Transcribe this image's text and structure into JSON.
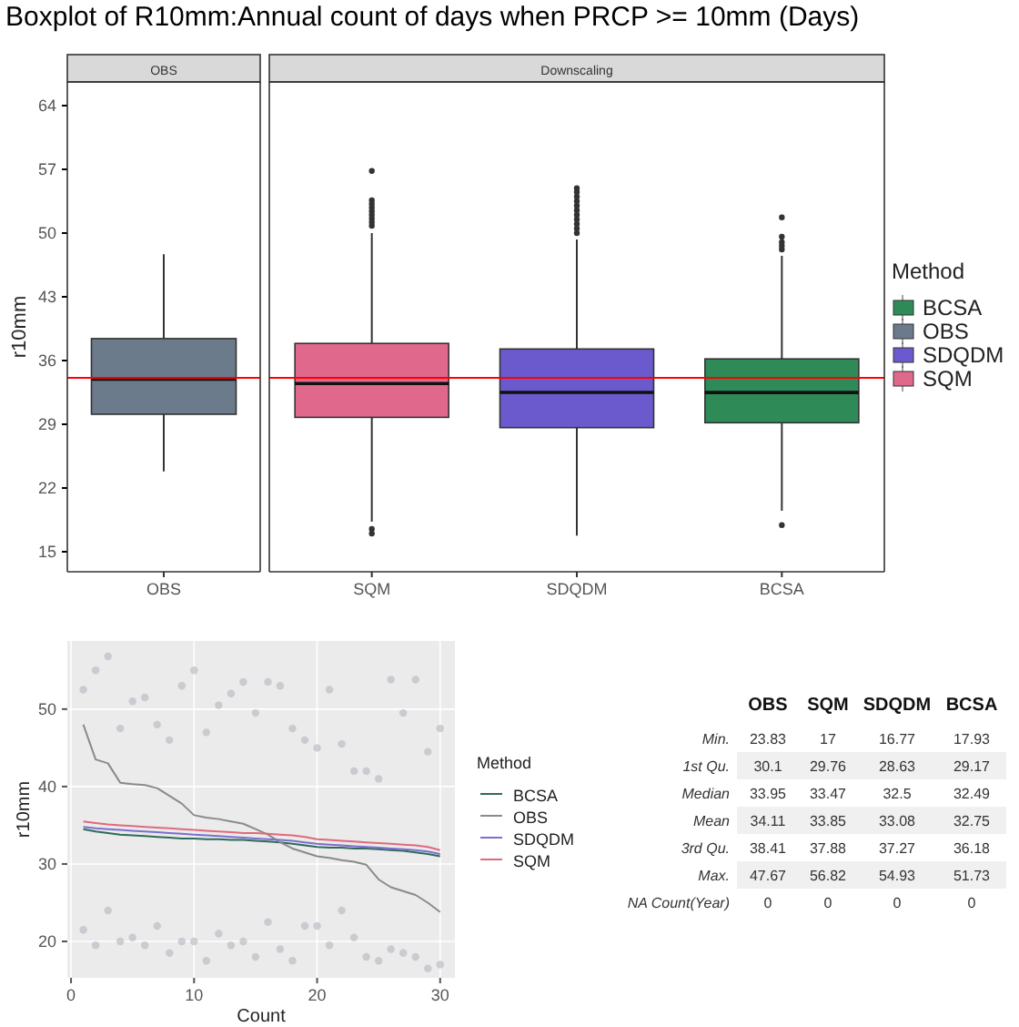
{
  "chart_data": [
    {
      "type": "box",
      "title": "Boxplot of R10mm:Annual count of days when PRCP >= 10mm (Days)",
      "ylabel": "r10mm",
      "categories": [
        "OBS",
        "SQM",
        "SDQDM",
        "BCSA"
      ],
      "annotations": [
        "OBS",
        "Downscaling"
      ],
      "legend": "right",
      "legend_title": "Method",
      "ylim": [
        12.8,
        66.6
      ],
      "yticks": [
        15,
        22,
        29,
        36,
        43,
        50,
        57,
        64
      ],
      "ref_lines": [
        {
          "axis": "y",
          "value": 34.11,
          "color": "#ff0000"
        }
      ],
      "series": [
        {
          "name": "BCSA",
          "color": "#2e8b57",
          "boxes": [
            null,
            null,
            null,
            {
              "low": 19.5,
              "q1": 29.17,
              "median": 32.49,
              "q3": 36.18,
              "high": 47.5,
              "outliers": [
                17.93,
                48.2,
                48.6,
                49.0,
                49.6,
                51.73
              ]
            }
          ]
        },
        {
          "name": "OBS",
          "color": "#6b7b8c",
          "boxes": [
            {
              "low": 23.83,
              "q1": 30.1,
              "median": 33.95,
              "q3": 38.41,
              "high": 47.67
            },
            null,
            null,
            null
          ]
        },
        {
          "name": "SDQDM",
          "color": "#6a5acd",
          "boxes": [
            null,
            null,
            {
              "low": 16.77,
              "q1": 28.63,
              "median": 32.5,
              "q3": 37.27,
              "high": 49.3,
              "outliers": [
                50,
                50.5,
                51,
                51.5,
                52,
                52.5,
                53,
                53.5,
                54,
                54.5,
                54.93
              ]
            },
            null
          ]
        },
        {
          "name": "SQM",
          "color": "#e0688c",
          "boxes": [
            null,
            {
              "low": 18.3,
              "q1": 29.76,
              "median": 33.47,
              "q3": 37.88,
              "high": 50,
              "outliers": [
                17,
                17.5,
                50.8,
                51.2,
                51.6,
                52,
                52.4,
                52.8,
                53.2,
                53.6,
                56.82
              ]
            },
            null,
            null
          ]
        }
      ]
    },
    {
      "type": "line",
      "xlabel": "Count",
      "ylabel": "r10mm",
      "legend": "right",
      "legend_title": "Method",
      "grid": true,
      "xlim": [
        -0.3,
        31.2
      ],
      "ylim": [
        15.3,
        58.8
      ],
      "xticks": [
        0,
        10,
        20,
        30
      ],
      "yticks": [
        20,
        30,
        40,
        50
      ],
      "x": [
        1,
        2,
        3,
        4,
        5,
        6,
        7,
        8,
        9,
        10,
        11,
        12,
        13,
        14,
        15,
        16,
        17,
        18,
        19,
        20,
        21,
        22,
        23,
        24,
        25,
        26,
        27,
        28,
        29,
        30
      ],
      "series": [
        {
          "type": "scatter",
          "marker": "circle",
          "color": "#b4b4c0",
          "x": [
            1,
            2,
            3,
            4,
            5,
            6,
            7,
            8,
            9,
            10,
            11,
            12,
            13,
            14,
            15,
            16,
            17,
            18,
            19,
            20,
            21,
            22,
            23,
            24,
            25,
            26,
            27,
            28,
            29,
            30,
            1,
            2,
            3,
            4,
            5,
            6,
            7,
            8,
            9,
            10,
            11,
            12,
            13,
            14,
            15,
            16,
            17,
            18,
            19,
            20,
            21,
            22,
            23,
            24,
            25,
            26,
            27,
            28,
            29,
            30
          ],
          "values": [
            52.5,
            55,
            56.8,
            47.5,
            51,
            51.5,
            48,
            46,
            53,
            55,
            47,
            50.5,
            52,
            53.5,
            49.5,
            53.5,
            53,
            47.5,
            46,
            45,
            52.5,
            45.5,
            42,
            42,
            41,
            53.8,
            49.5,
            53.8,
            44.5,
            47.5,
            21.5,
            19.5,
            24,
            20,
            20.5,
            19.5,
            22,
            18.5,
            20,
            20,
            17.5,
            21,
            19.5,
            20,
            18,
            22.5,
            19,
            17.5,
            22,
            22,
            19.5,
            24,
            20.5,
            18,
            17.5,
            19,
            18.5,
            18,
            16.5,
            17
          ]
        },
        {
          "name": "BCSA",
          "color": "#2e6b5a",
          "values": [
            34.5,
            34.2,
            34,
            33.8,
            33.7,
            33.6,
            33.5,
            33.4,
            33.3,
            33.3,
            33.2,
            33.2,
            33.1,
            33.1,
            33,
            32.9,
            32.8,
            32.6,
            32.4,
            32.2,
            32.1,
            32.1,
            32,
            32,
            31.9,
            31.8,
            31.7,
            31.5,
            31.3,
            31
          ]
        },
        {
          "name": "OBS",
          "color": "#8a8a8a",
          "values": [
            48,
            43.5,
            43,
            40.5,
            40.3,
            40.2,
            39.8,
            38.8,
            37.8,
            36.3,
            36,
            35.8,
            35.5,
            35.2,
            34.5,
            33.8,
            32.8,
            32,
            31.5,
            31,
            30.8,
            30.5,
            30.3,
            29.9,
            28,
            27,
            26.5,
            26,
            25,
            23.8
          ]
        },
        {
          "name": "SDQDM",
          "color": "#7b6fd0",
          "values": [
            34.8,
            34.6,
            34.5,
            34.4,
            34.3,
            34.2,
            34.1,
            34,
            33.9,
            33.8,
            33.7,
            33.6,
            33.5,
            33.4,
            33.3,
            33.2,
            33.1,
            33,
            32.8,
            32.6,
            32.5,
            32.4,
            32.3,
            32.2,
            32.1,
            32,
            31.9,
            31.8,
            31.6,
            31.3
          ]
        },
        {
          "name": "SQM",
          "color": "#e06a7a",
          "values": [
            35.5,
            35.3,
            35.1,
            35,
            34.9,
            34.8,
            34.7,
            34.6,
            34.5,
            34.4,
            34.3,
            34.2,
            34.1,
            34,
            34,
            33.9,
            33.8,
            33.7,
            33.5,
            33.2,
            33.1,
            33,
            32.9,
            32.8,
            32.7,
            32.6,
            32.5,
            32.4,
            32.2,
            31.8
          ]
        }
      ]
    },
    {
      "type": "other",
      "categories": [
        "OBS",
        "SQM",
        "SDQDM",
        "BCSA"
      ],
      "y_categories": [
        "Min.",
        "1st Qu.",
        "Median",
        "Mean",
        "3rd Qu.",
        "Max.",
        "NA Count(Year)"
      ],
      "cell_labels": [
        [
          "23.83",
          "17",
          "16.77",
          "17.93"
        ],
        [
          "30.1",
          "29.76",
          "28.63",
          "29.17"
        ],
        [
          "33.95",
          "33.47",
          "32.5",
          "32.49"
        ],
        [
          "34.11",
          "33.85",
          "33.08",
          "32.75"
        ],
        [
          "38.41",
          "37.88",
          "37.27",
          "36.18"
        ],
        [
          "47.67",
          "56.82",
          "54.93",
          "51.73"
        ],
        [
          "0",
          "0",
          "0",
          "0"
        ]
      ]
    }
  ]
}
